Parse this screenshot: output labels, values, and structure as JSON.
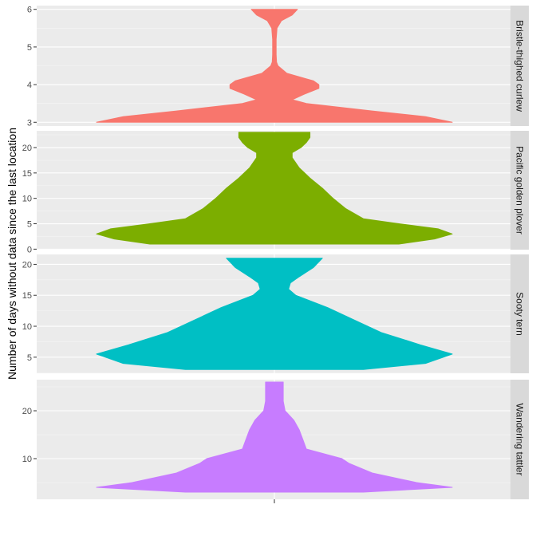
{
  "chart_data": {
    "type": "violin",
    "ylabel": "Number of days without data since the last location",
    "xlabel": "",
    "grid": true,
    "panels": [
      {
        "name": "Bristle-thighed curlew",
        "color": "#F8766D",
        "ylim": [
          2.9,
          6.1
        ],
        "yticks": [
          3,
          4,
          5,
          6
        ],
        "profile": [
          [
            3.0,
            1.0
          ],
          [
            3.15,
            0.85
          ],
          [
            3.3,
            0.55
          ],
          [
            3.5,
            0.18
          ],
          [
            3.6,
            0.1
          ],
          [
            3.75,
            0.17
          ],
          [
            3.9,
            0.25
          ],
          [
            4.0,
            0.25
          ],
          [
            4.1,
            0.22
          ],
          [
            4.3,
            0.07
          ],
          [
            4.5,
            0.02
          ],
          [
            4.6,
            0.012
          ],
          [
            4.8,
            0.01
          ],
          [
            5.0,
            0.01
          ],
          [
            5.2,
            0.01
          ],
          [
            5.5,
            0.015
          ],
          [
            5.7,
            0.04
          ],
          [
            5.85,
            0.1
          ],
          [
            6.0,
            0.13
          ]
        ]
      },
      {
        "name": "Pacific golden plover",
        "color": "#7CAE00",
        "ylim": [
          -0.1,
          23.3
        ],
        "yticks": [
          0,
          5,
          10,
          15,
          20
        ],
        "profile": [
          [
            1.0,
            0.7
          ],
          [
            2.0,
            0.9
          ],
          [
            3.0,
            1.0
          ],
          [
            4.0,
            0.92
          ],
          [
            5.0,
            0.7
          ],
          [
            6.0,
            0.5
          ],
          [
            8.0,
            0.4
          ],
          [
            10.0,
            0.33
          ],
          [
            12.0,
            0.27
          ],
          [
            14.0,
            0.2
          ],
          [
            16.0,
            0.14
          ],
          [
            18.0,
            0.1
          ],
          [
            19.0,
            0.1
          ],
          [
            20.0,
            0.15
          ],
          [
            21.0,
            0.18
          ],
          [
            22.0,
            0.2
          ],
          [
            23.0,
            0.2
          ]
        ]
      },
      {
        "name": "Sooty tern",
        "color": "#00BFC4",
        "ylim": [
          2.4,
          21.6
        ],
        "yticks": [
          5,
          10,
          15,
          20
        ],
        "profile": [
          [
            3.0,
            0.5
          ],
          [
            4.0,
            0.85
          ],
          [
            5.5,
            1.0
          ],
          [
            7.0,
            0.82
          ],
          [
            9.0,
            0.6
          ],
          [
            11.0,
            0.45
          ],
          [
            13.0,
            0.3
          ],
          [
            15.0,
            0.12
          ],
          [
            16.0,
            0.08
          ],
          [
            17.0,
            0.09
          ],
          [
            18.0,
            0.14
          ],
          [
            19.5,
            0.22
          ],
          [
            21.0,
            0.27
          ]
        ]
      },
      {
        "name": "Wandering tattler",
        "color": "#C77CFF",
        "ylim": [
          1.5,
          26.5
        ],
        "yticks": [
          10,
          20
        ],
        "profile": [
          [
            3.0,
            0.5
          ],
          [
            4.0,
            1.0
          ],
          [
            5.0,
            0.8
          ],
          [
            7.0,
            0.55
          ],
          [
            9.0,
            0.42
          ],
          [
            10.0,
            0.38
          ],
          [
            11.0,
            0.28
          ],
          [
            12.0,
            0.18
          ],
          [
            14.0,
            0.16
          ],
          [
            16.0,
            0.14
          ],
          [
            18.0,
            0.11
          ],
          [
            20.0,
            0.06
          ],
          [
            22.0,
            0.05
          ],
          [
            24.0,
            0.05
          ],
          [
            26.0,
            0.05
          ]
        ]
      }
    ]
  }
}
